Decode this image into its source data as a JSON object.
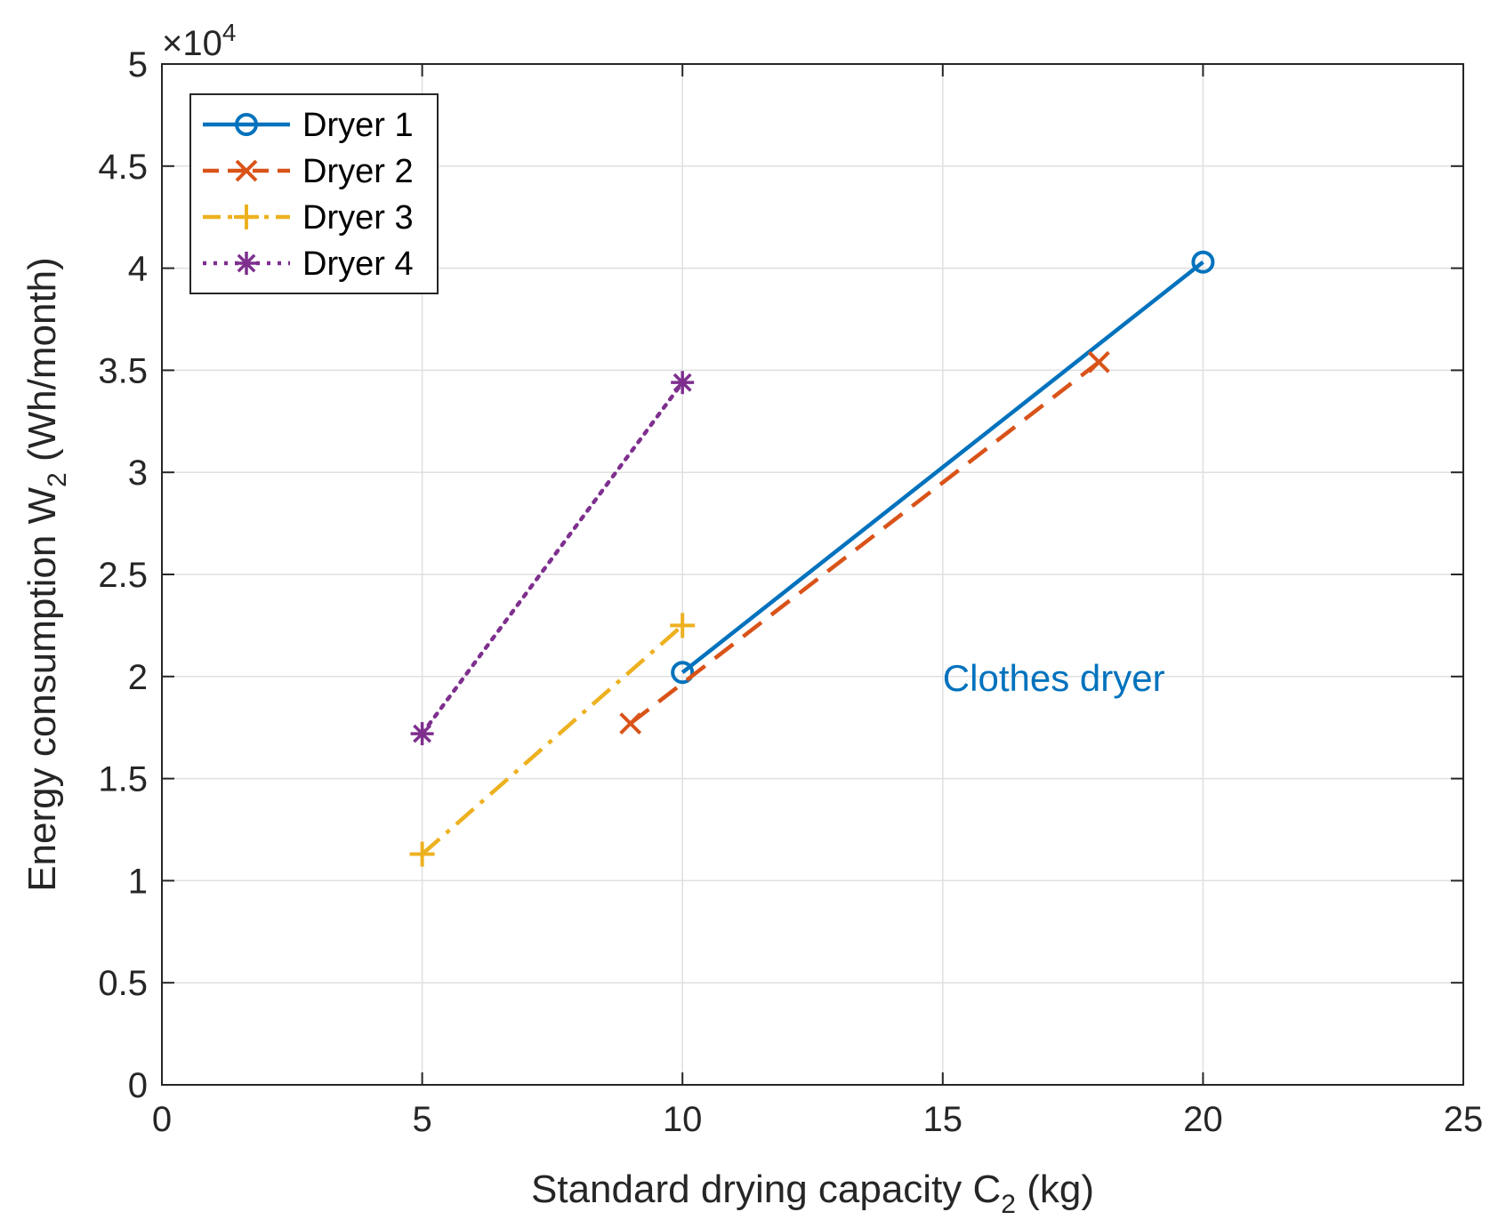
{
  "chart_data": {
    "type": "line",
    "title": "",
    "xlabel_main": "Standard drying capacity C",
    "xlabel_sub": "2",
    "xlabel_tail": " (kg)",
    "ylabel_main": "Energy consumption W",
    "ylabel_sub": "2",
    "ylabel_tail": " (Wh/month)",
    "xlim": [
      0,
      25
    ],
    "ylim": [
      0,
      5
    ],
    "xticks": [
      0,
      5,
      10,
      15,
      20,
      25
    ],
    "yticks": [
      0,
      0.5,
      1,
      1.5,
      2,
      2.5,
      3,
      3.5,
      4,
      4.5,
      5
    ],
    "xtick_labels": [
      "0",
      "5",
      "10",
      "15",
      "20",
      "25"
    ],
    "ytick_labels": [
      "0",
      "0.5",
      "1",
      "1.5",
      "2",
      "2.5",
      "3",
      "3.5",
      "4",
      "4.5",
      "5"
    ],
    "y_exponent_base": "×10",
    "y_exponent_power": "4",
    "grid": true,
    "legend_position": "top-left",
    "annotation": {
      "text": "Clothes dryer",
      "x": 15,
      "y": 2.0,
      "color": "#0072BD"
    },
    "series": [
      {
        "name": "Dryer 1",
        "color": "#0072BD",
        "dash": "solid",
        "marker": "circle",
        "x": [
          10,
          20
        ],
        "y": [
          2.02,
          4.03
        ]
      },
      {
        "name": "Dryer 2",
        "color": "#D95319",
        "dash": "dashed",
        "marker": "x",
        "x": [
          9,
          18
        ],
        "y": [
          1.77,
          3.54
        ]
      },
      {
        "name": "Dryer 3",
        "color": "#EDB120",
        "dash": "dashdot",
        "marker": "plus",
        "x": [
          5,
          10
        ],
        "y": [
          1.13,
          2.25
        ]
      },
      {
        "name": "Dryer 4",
        "color": "#7E2F8E",
        "dash": "dotted",
        "marker": "asterisk",
        "x": [
          5,
          10
        ],
        "y": [
          1.72,
          3.44
        ]
      }
    ]
  }
}
